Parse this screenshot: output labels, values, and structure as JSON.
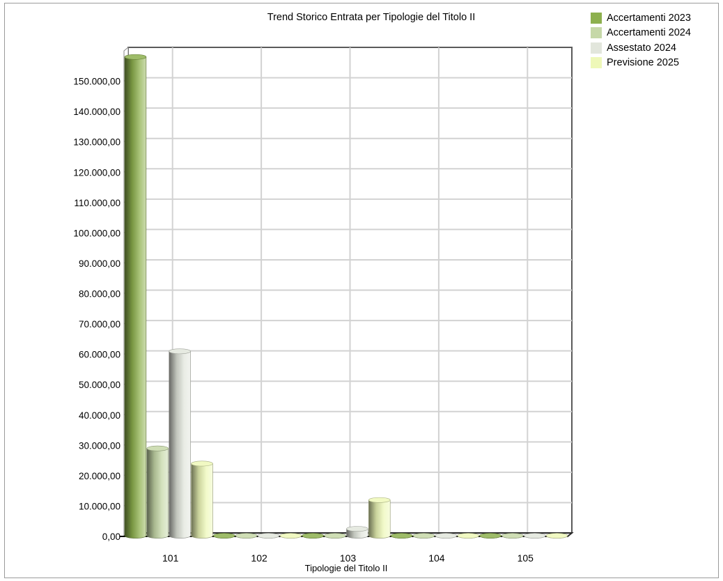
{
  "chart_data": {
    "type": "bar",
    "title": "Trend Storico Entrata per Tipologie del Titolo II",
    "xlabel": "Tipologie del Titolo II",
    "ylabel": "",
    "categories": [
      "101",
      "102",
      "103",
      "104",
      "105"
    ],
    "ylim": [
      0,
      160000
    ],
    "yticks": [
      0,
      10000,
      20000,
      30000,
      40000,
      50000,
      60000,
      70000,
      80000,
      90000,
      100000,
      110000,
      120000,
      130000,
      140000,
      150000
    ],
    "ytick_labels": [
      "0,00",
      "10.000,00",
      "20.000,00",
      "30.000,00",
      "40.000,00",
      "50.000,00",
      "60.000,00",
      "70.000,00",
      "80.000,00",
      "90.000,00",
      "100.000,00",
      "110.000,00",
      "120.000,00",
      "130.000,00",
      "140.000,00",
      "150.000,00"
    ],
    "series": [
      {
        "name": "Accertamenti 2023",
        "color": "#8db04e",
        "values": [
          158000,
          0,
          0,
          0,
          0
        ]
      },
      {
        "name": "Accertamenti 2024",
        "color": "#c6d8a8",
        "values": [
          29000,
          0,
          0,
          0,
          0
        ]
      },
      {
        "name": "Assestato 2024",
        "color": "#e2e6dc",
        "values": [
          61000,
          0,
          2500,
          0,
          0
        ]
      },
      {
        "name": "Previsione 2025",
        "color": "#eef8b8",
        "values": [
          24000,
          0,
          12000,
          0,
          0
        ]
      }
    ],
    "grid": true,
    "legend_position": "top-right"
  }
}
